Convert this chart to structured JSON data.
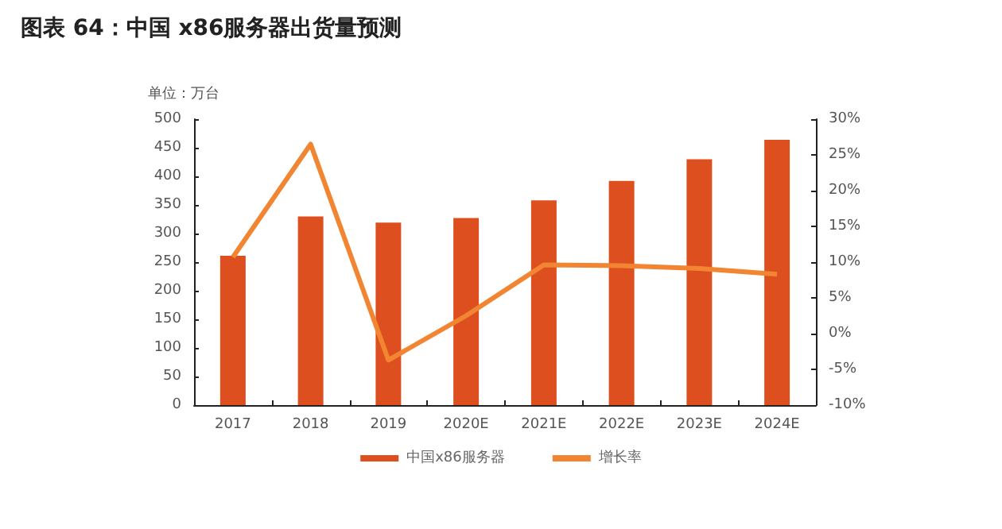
{
  "chart_data": {
    "type": "bar",
    "title": "图表 64：中国 x86服务器出货量预测",
    "ylabel": "单位：万台",
    "categories": [
      "2017",
      "2018",
      "2019",
      "2020E",
      "2021E",
      "2022E",
      "2023E",
      "2024E"
    ],
    "series": [
      {
        "name": "中国x86服务器",
        "color": "#dd4f1e",
        "values": [
          261,
          330,
          319,
          327,
          358,
          392,
          430,
          464
        ]
      },
      {
        "name": "增长率",
        "type": "line",
        "axis": "y2",
        "color": "#f28532",
        "values": [
          10.7,
          26.5,
          -3.7,
          2.5,
          9.6,
          9.5,
          9.1,
          8.3
        ]
      }
    ],
    "ylim": [
      0,
      500
    ],
    "yticks": [
      0,
      50,
      100,
      150,
      200,
      250,
      300,
      350,
      400,
      450,
      500
    ],
    "y2lim": [
      -10,
      30
    ],
    "y2ticks": [
      {
        "value": -10,
        "label": "-10%"
      },
      {
        "value": -5,
        "label": "-5%"
      },
      {
        "value": 0,
        "label": "0%"
      },
      {
        "value": 5,
        "label": "5%"
      },
      {
        "value": 10,
        "label": "10%"
      },
      {
        "value": 15,
        "label": "15%"
      },
      {
        "value": 20,
        "label": "20%"
      },
      {
        "value": 25,
        "label": "25%"
      },
      {
        "value": 30,
        "label": "30%"
      }
    ],
    "grid": false,
    "legend": "bottom",
    "marker": "none"
  }
}
